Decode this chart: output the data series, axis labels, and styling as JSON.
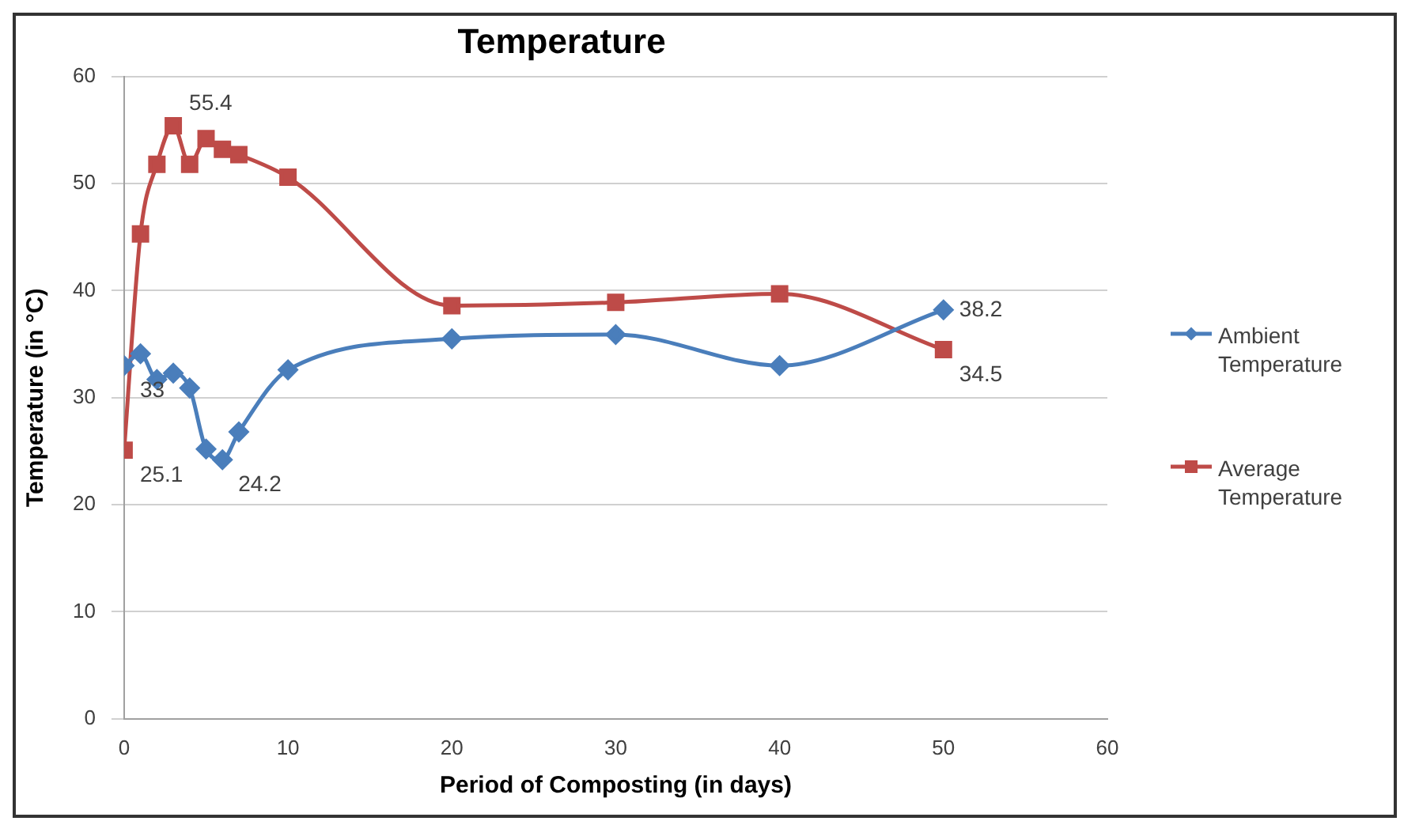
{
  "chart_data": {
    "type": "line",
    "title": "Temperature",
    "xlabel": "Period of Composting (in days)",
    "ylabel": "Temperature (in °C)",
    "xlim": [
      0,
      60
    ],
    "xticks": [
      0,
      10,
      20,
      30,
      40,
      50,
      60
    ],
    "ylim": [
      0,
      60
    ],
    "yticks": [
      0,
      10,
      20,
      30,
      40,
      50,
      60
    ],
    "grid": "y",
    "legend": "right",
    "series": [
      {
        "name": "Ambient Temperature",
        "color": "#4a7ebb",
        "marker": "diamond",
        "x": [
          0,
          1,
          2,
          3,
          4,
          5,
          6,
          7,
          10,
          20,
          30,
          40,
          50
        ],
        "values": [
          33,
          34.1,
          31.7,
          32.3,
          30.9,
          25.2,
          24.2,
          26.8,
          32.6,
          35.5,
          35.9,
          33,
          38.2
        ],
        "value_labels": [
          "33",
          null,
          null,
          null,
          null,
          null,
          "24.2",
          null,
          null,
          null,
          null,
          null,
          "38.2"
        ]
      },
      {
        "name": "Average Temperature",
        "color": "#be4b48",
        "marker": "square",
        "x": [
          0,
          1,
          2,
          3,
          4,
          5,
          6,
          7,
          10,
          20,
          30,
          40,
          50
        ],
        "values": [
          25.1,
          45.3,
          51.8,
          55.4,
          51.8,
          54.2,
          53.2,
          52.7,
          50.6,
          38.6,
          38.9,
          39.7,
          34.5
        ],
        "value_labels": [
          "25.1",
          null,
          null,
          "55.4",
          null,
          null,
          null,
          null,
          null,
          null,
          null,
          null,
          "34.5"
        ]
      }
    ]
  }
}
